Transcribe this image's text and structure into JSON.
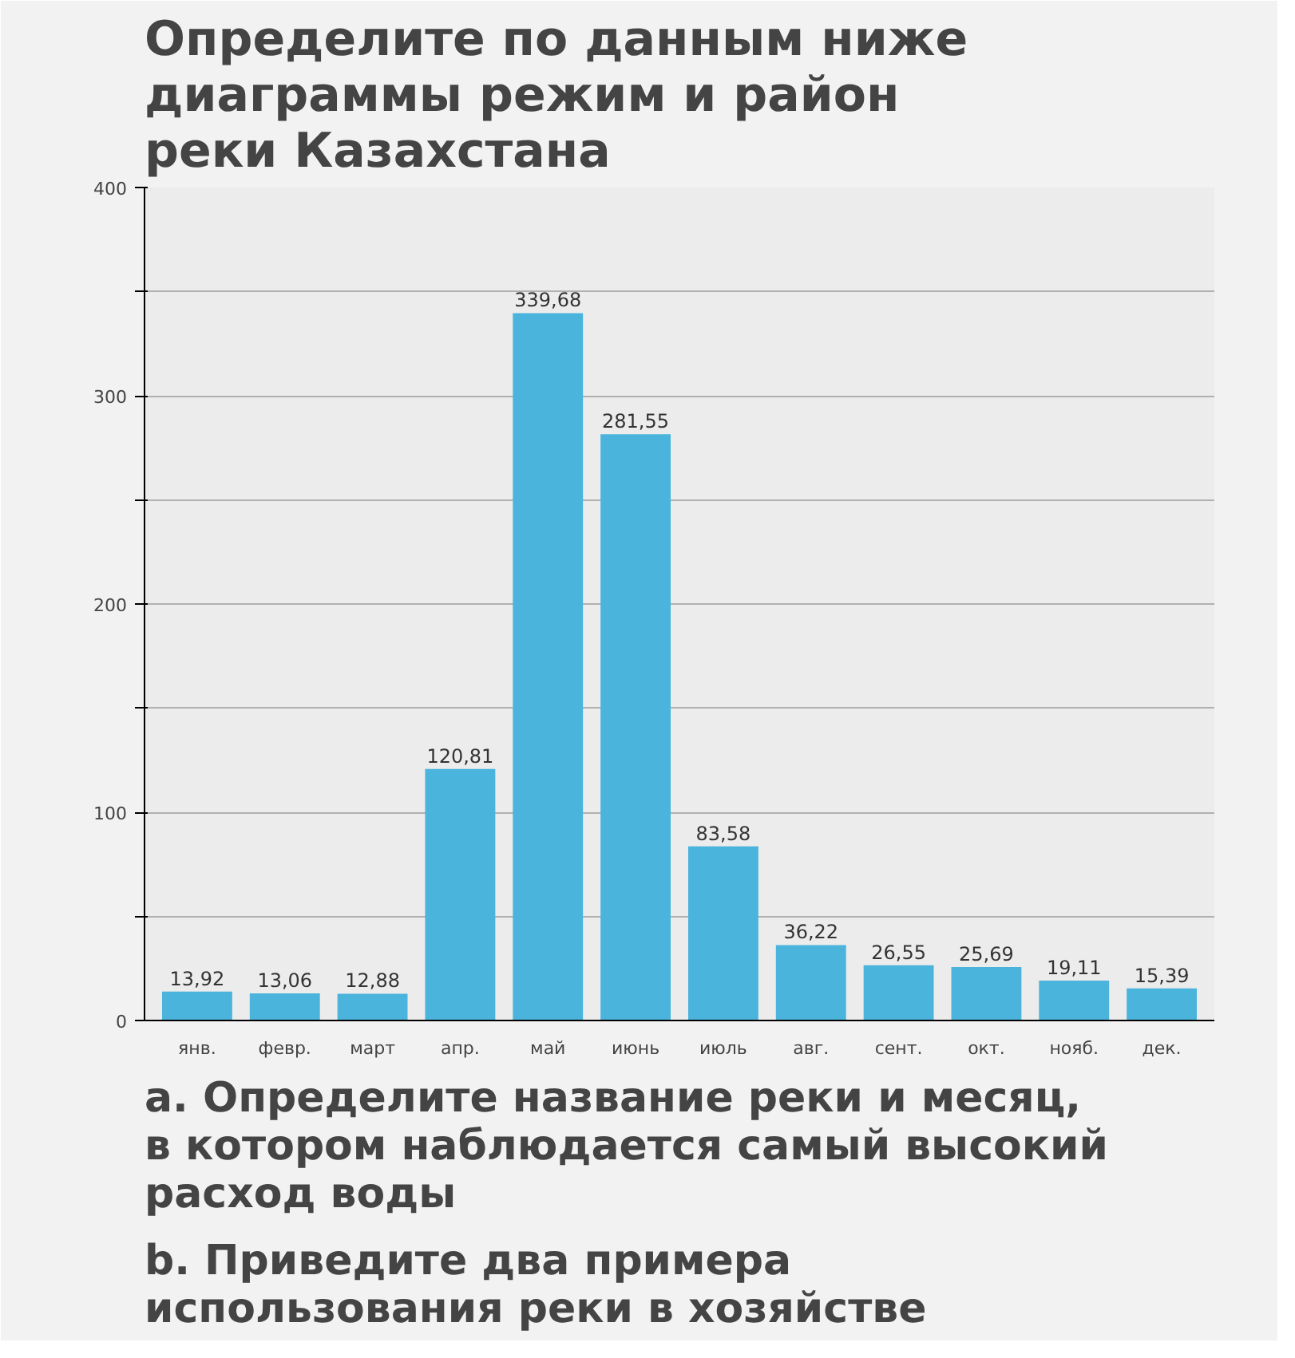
{
  "chart_data": {
    "type": "bar",
    "title": "Определите по данным ниже диаграммы режим и район реки Казахстана",
    "categories": [
      "янв.",
      "февр.",
      "март",
      "апр.",
      "май",
      "июнь",
      "июль",
      "авг.",
      "сент.",
      "окт.",
      "нояб.",
      "дек."
    ],
    "values": [
      13.92,
      13.06,
      12.88,
      120.81,
      339.68,
      281.55,
      83.58,
      36.22,
      26.55,
      25.69,
      19.11,
      15.39
    ],
    "value_labels": [
      "13,92",
      "13,06",
      "12,88",
      "120,81",
      "339,68",
      "281,55",
      "83,58",
      "36,22",
      "26,55",
      "25,69",
      "19,11",
      "15,39"
    ],
    "color": "#4ab4dc",
    "ylim": [
      0,
      400
    ],
    "yticks": [
      0,
      {
        "value": 50,
        "label": null
      },
      100,
      {
        "value": 150,
        "label": null
      },
      200,
      {
        "value": 250,
        "label": null
      },
      300,
      {
        "value": 350,
        "label": null
      },
      400
    ],
    "grid": "y",
    "annotations": [
      "a. Определите название реки и месяц, в котором наблюдается самый высокий расход воды",
      "b. Приведите два примера использования реки в хозяйстве"
    ]
  }
}
